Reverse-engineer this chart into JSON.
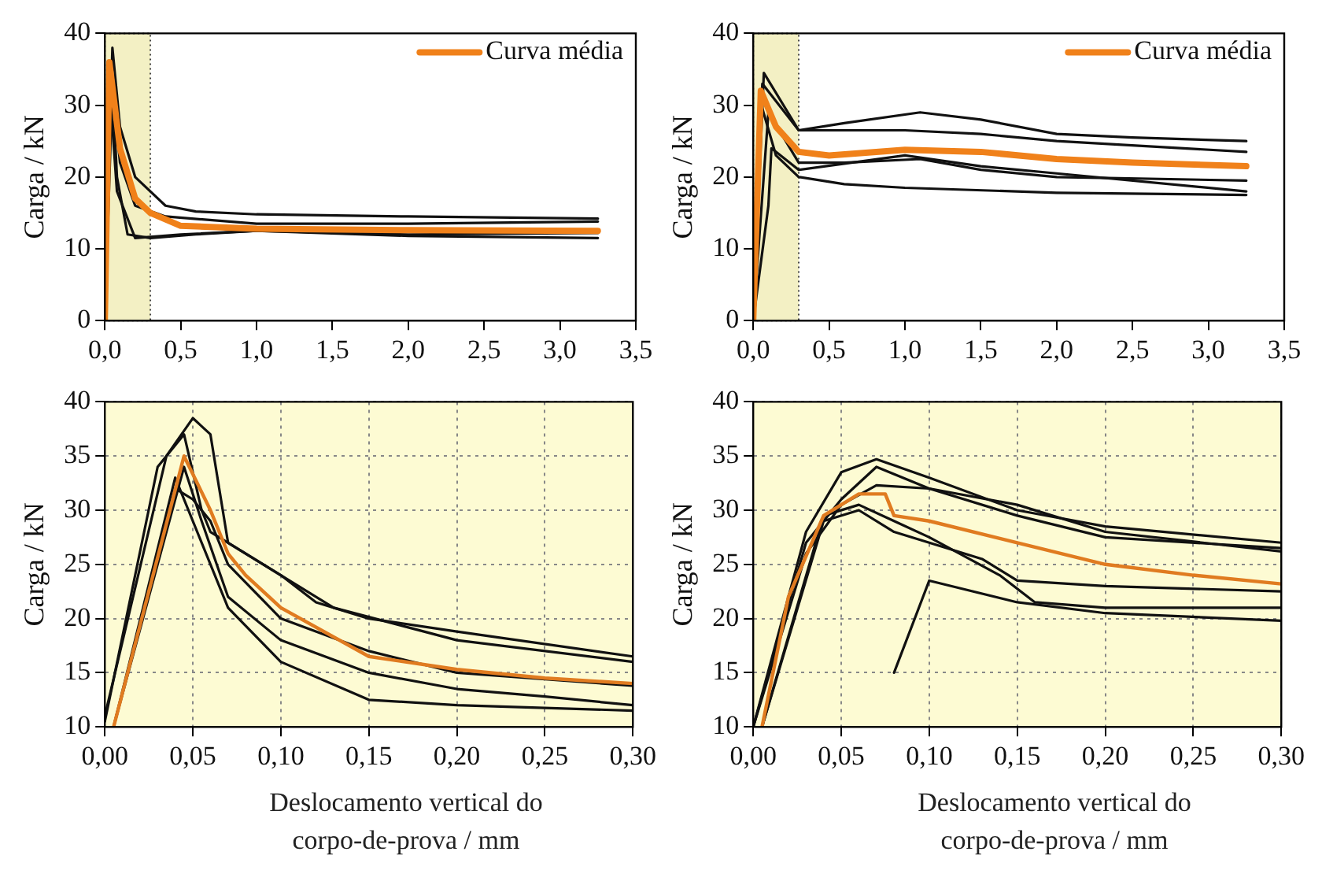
{
  "chart_data": [
    {
      "type": "line",
      "ylabel": "Carga / kN",
      "xlim": [
        0,
        3.5
      ],
      "ylim": [
        0,
        40
      ],
      "xticks": [
        {
          "value": 0,
          "label": "0,0"
        },
        {
          "value": 0.5,
          "label": "0,5"
        },
        {
          "value": 1,
          "label": "1,0"
        },
        {
          "value": 1.5,
          "label": "1,5"
        },
        {
          "value": 2,
          "label": "2,0"
        },
        {
          "value": 2.5,
          "label": "2,5"
        },
        {
          "value": 3,
          "label": "3,0"
        },
        {
          "value": 3.5,
          "label": "3,5"
        }
      ],
      "yticks": [
        0,
        10,
        20,
        30,
        40
      ],
      "grid": false,
      "legend": "top right",
      "marker": "none",
      "bands": [
        {
          "axis": "x",
          "from": 0,
          "to": 0.3,
          "color": "#f3f0c4"
        }
      ],
      "series": [
        {
          "color": "#111111",
          "x": [
            0,
            0.05,
            0.1,
            0.2,
            0.4,
            0.6,
            1,
            2,
            3.25
          ],
          "values": [
            0,
            38,
            27,
            20,
            16,
            15.2,
            14.8,
            14.5,
            14.2
          ]
        },
        {
          "color": "#111111",
          "x": [
            0,
            0.04,
            0.1,
            0.2,
            0.4,
            1,
            2,
            3.25
          ],
          "values": [
            0,
            35,
            22,
            16,
            14.5,
            13.5,
            13.5,
            13.8
          ]
        },
        {
          "color": "#111111",
          "x": [
            0,
            0.05,
            0.08,
            0.15,
            0.3,
            0.6,
            1,
            2,
            3.25
          ],
          "values": [
            0,
            33,
            20,
            12,
            11.5,
            12,
            12.5,
            11.8,
            11.5
          ]
        },
        {
          "color": "#111111",
          "x": [
            0,
            0.04,
            0.08,
            0.2,
            0.5,
            1,
            2,
            3.25
          ],
          "values": [
            0,
            30,
            18,
            11.5,
            12,
            12.5,
            12,
            12.2
          ]
        },
        {
          "name": "Curva média",
          "color": "#f0811a",
          "x": [
            0,
            0.03,
            0.1,
            0.2,
            0.3,
            0.5,
            1,
            2,
            3.25
          ],
          "values": [
            0,
            36,
            24,
            17,
            15,
            13.2,
            12.8,
            12.6,
            12.5
          ]
        }
      ]
    },
    {
      "type": "line",
      "ylabel": "Carga / kN",
      "xlim": [
        0,
        3.5
      ],
      "ylim": [
        0,
        40
      ],
      "xticks": [
        {
          "value": 0,
          "label": "0,0"
        },
        {
          "value": 0.5,
          "label": "0,5"
        },
        {
          "value": 1,
          "label": "1,0"
        },
        {
          "value": 1.5,
          "label": "1,5"
        },
        {
          "value": 2,
          "label": "2,0"
        },
        {
          "value": 2.5,
          "label": "2,5"
        },
        {
          "value": 3,
          "label": "3,0"
        },
        {
          "value": 3.5,
          "label": "3,5"
        }
      ],
      "yticks": [
        0,
        10,
        20,
        30,
        40
      ],
      "grid": false,
      "legend": "top right",
      "marker": "none",
      "bands": [
        {
          "axis": "x",
          "from": 0,
          "to": 0.3,
          "color": "#f3f0c4"
        }
      ],
      "series": [
        {
          "color": "#111111",
          "x": [
            0,
            0.07,
            0.3,
            0.6,
            1.1,
            1.5,
            2,
            2.5,
            3.25
          ],
          "values": [
            0,
            34.5,
            26.5,
            27.5,
            29,
            28,
            26,
            25.5,
            25
          ]
        },
        {
          "color": "#111111",
          "x": [
            0,
            0.06,
            0.3,
            1,
            1.5,
            2,
            3.25
          ],
          "values": [
            0,
            33,
            26.5,
            26.5,
            26,
            25,
            23.5
          ]
        },
        {
          "color": "#111111",
          "x": [
            0,
            0.1,
            0.3,
            0.6,
            1.1,
            1.5,
            2,
            3.25
          ],
          "values": [
            0,
            29,
            22,
            22,
            22.5,
            21,
            20,
            19.5
          ]
        },
        {
          "color": "#111111",
          "x": [
            0,
            0.04,
            0.15,
            0.3,
            0.6,
            1,
            2,
            3.25
          ],
          "values": [
            0,
            31,
            23,
            20,
            19,
            18.5,
            17.8,
            17.5
          ]
        },
        {
          "color": "#111111",
          "x": [
            0,
            0.1,
            0.12,
            0.3,
            1,
            1.5,
            2,
            3.25
          ],
          "values": [
            0,
            16,
            24,
            21,
            23,
            21.5,
            20.5,
            18
          ]
        },
        {
          "name": "Curva média",
          "color": "#f0811a",
          "x": [
            0,
            0.05,
            0.15,
            0.3,
            0.5,
            1,
            1.5,
            2,
            2.5,
            3.25
          ],
          "values": [
            0,
            32,
            27,
            23.5,
            23,
            23.8,
            23.5,
            22.5,
            22,
            21.5
          ]
        }
      ]
    },
    {
      "type": "line",
      "ylabel": "Carga / kN",
      "xlabel": "Deslocamento vertical do corpo-de-prova / mm",
      "xlim": [
        0,
        0.3
      ],
      "ylim": [
        10,
        40
      ],
      "xticks": [
        {
          "value": 0,
          "label": "0,00"
        },
        {
          "value": 0.05,
          "label": "0,05"
        },
        {
          "value": 0.1,
          "label": "0,10"
        },
        {
          "value": 0.15,
          "label": "0,15"
        },
        {
          "value": 0.2,
          "label": "0,20"
        },
        {
          "value": 0.25,
          "label": "0,25"
        },
        {
          "value": 0.3,
          "label": "0,30"
        }
      ],
      "yticks": [
        10,
        15,
        20,
        25,
        30,
        35,
        40
      ],
      "grid": true,
      "legend": false,
      "marker": "none",
      "series": [
        {
          "color": "#111111",
          "x": [
            0,
            0.035,
            0.05,
            0.06,
            0.065,
            0.07,
            0.1,
            0.12,
            0.15,
            0.2,
            0.3
          ],
          "values": [
            11,
            35,
            38.5,
            37,
            32,
            27,
            24,
            21.5,
            20,
            18.8,
            16.5
          ]
        },
        {
          "color": "#111111",
          "x": [
            0,
            0.03,
            0.045,
            0.055,
            0.06,
            0.08,
            0.1,
            0.13,
            0.2,
            0.3
          ],
          "values": [
            10.5,
            34,
            37,
            30,
            28,
            26,
            24,
            21,
            18,
            16
          ]
        },
        {
          "color": "#111111",
          "x": [
            0.005,
            0.04,
            0.05,
            0.06,
            0.07,
            0.1,
            0.15,
            0.2,
            0.3
          ],
          "values": [
            10,
            32,
            31,
            29,
            25,
            20,
            17,
            15,
            13.8
          ]
        },
        {
          "color": "#111111",
          "x": [
            0.005,
            0.045,
            0.055,
            0.07,
            0.1,
            0.15,
            0.2,
            0.25,
            0.3
          ],
          "values": [
            10,
            34,
            29,
            22,
            18,
            15,
            13.5,
            12.8,
            12
          ]
        },
        {
          "color": "#111111",
          "x": [
            0.005,
            0.04,
            0.07,
            0.1,
            0.15,
            0.2,
            0.3
          ],
          "values": [
            10,
            33,
            21,
            16,
            12.5,
            12,
            11.5
          ]
        },
        {
          "color": "#e07b20",
          "x": [
            0.005,
            0.045,
            0.06,
            0.07,
            0.08,
            0.1,
            0.15,
            0.2,
            0.25,
            0.3
          ],
          "values": [
            10,
            35,
            30,
            26,
            24,
            21,
            16.5,
            15.3,
            14.5,
            14
          ]
        }
      ]
    },
    {
      "type": "line",
      "ylabel": "Carga / kN",
      "xlabel": "Deslocamento vertical do corpo-de-prova / mm",
      "xlim": [
        0,
        0.3
      ],
      "ylim": [
        10,
        40
      ],
      "xticks": [
        {
          "value": 0,
          "label": "0,00"
        },
        {
          "value": 0.05,
          "label": "0,05"
        },
        {
          "value": 0.1,
          "label": "0,10"
        },
        {
          "value": 0.15,
          "label": "0,15"
        },
        {
          "value": 0.2,
          "label": "0,20"
        },
        {
          "value": 0.25,
          "label": "0,25"
        },
        {
          "value": 0.3,
          "label": "0,30"
        }
      ],
      "yticks": [
        10,
        15,
        20,
        25,
        30,
        35,
        40
      ],
      "grid": true,
      "legend": false,
      "marker": "none",
      "series": [
        {
          "color": "#111111",
          "x": [
            0,
            0.03,
            0.05,
            0.07,
            0.1,
            0.15,
            0.2,
            0.3
          ],
          "values": [
            10,
            28,
            33.5,
            34.7,
            33,
            30,
            28.5,
            27
          ]
        },
        {
          "color": "#111111",
          "x": [
            0,
            0.03,
            0.05,
            0.07,
            0.1,
            0.15,
            0.2,
            0.3
          ],
          "values": [
            10,
            27,
            31,
            34,
            32,
            29.5,
            27.5,
            26.5
          ]
        },
        {
          "color": "#111111",
          "x": [
            0,
            0.03,
            0.05,
            0.07,
            0.1,
            0.15,
            0.2,
            0.3
          ],
          "values": [
            10,
            26,
            30.5,
            32.3,
            32,
            30.5,
            28,
            26.2
          ]
        },
        {
          "color": "#111111",
          "x": [
            0.005,
            0.04,
            0.06,
            0.08,
            0.1,
            0.13,
            0.15,
            0.2,
            0.3
          ],
          "values": [
            10,
            29,
            30,
            28,
            27,
            25.5,
            23.5,
            23,
            22.5
          ]
        },
        {
          "color": "#111111",
          "x": [
            0.005,
            0.04,
            0.06,
            0.08,
            0.1,
            0.14,
            0.16,
            0.2,
            0.3
          ],
          "values": [
            10,
            29.5,
            30.5,
            29,
            27.5,
            24,
            21.5,
            21,
            21
          ]
        },
        {
          "color": "#111111",
          "x": [
            0.08,
            0.1,
            0.15,
            0.2,
            0.3
          ],
          "values": [
            15,
            23.5,
            21.5,
            20.5,
            19.8
          ]
        },
        {
          "color": "#e07b20",
          "x": [
            0.005,
            0.02,
            0.04,
            0.06,
            0.075,
            0.08,
            0.1,
            0.15,
            0.2,
            0.25,
            0.3
          ],
          "values": [
            10,
            22,
            29.5,
            31.5,
            31.5,
            29.5,
            29,
            27,
            25,
            24,
            23.2
          ]
        }
      ]
    }
  ]
}
